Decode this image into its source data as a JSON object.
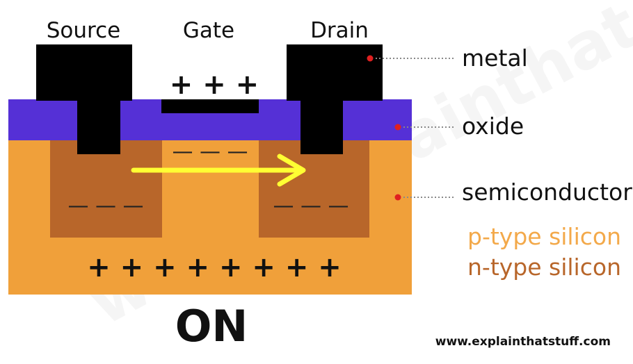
{
  "labels": {
    "source": "Source",
    "gate": "Gate",
    "drain": "Drain"
  },
  "legend": {
    "metal": "metal",
    "oxide": "oxide",
    "semiconductor": "semiconductor",
    "p_type": "p-type silicon",
    "n_type": "n-type silicon"
  },
  "charges": {
    "gate_plus": "+ + +",
    "channel_minus": "— — —",
    "source_minus": "— — —",
    "drain_minus": "— — —",
    "substrate_plus": "+ + + + + + + +"
  },
  "state": "ON",
  "url": "www.explainthatstuff.com",
  "watermark": "www.explainthatstuff.com",
  "colors": {
    "metal": "#000000",
    "oxide": "#5530d6",
    "p_type": "#f0a03a",
    "n_type": "#b8662a",
    "arrow": "#ffff33",
    "leader_dot": "#e02020",
    "p_type_text": "#f3a94a",
    "n_type_text": "#b8662a"
  }
}
